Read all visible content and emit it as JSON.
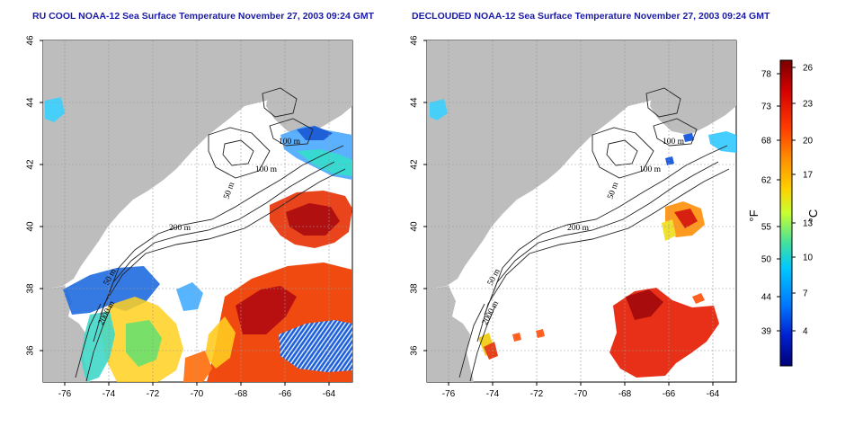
{
  "left_map": {
    "title": "RU COOL NOAA-12 Sea Surface Temperature November 27, 2003 09:24 GMT",
    "x_ticks": [
      "-76",
      "-74",
      "-72",
      "-70",
      "-68",
      "-66",
      "-64"
    ],
    "y_ticks": [
      "46",
      "44",
      "42",
      "40",
      "38",
      "36"
    ],
    "contour_labels": [
      "100 m",
      "100 m",
      "50 m",
      "200 m",
      "50 m",
      "2000 m"
    ]
  },
  "right_map": {
    "title": "DECLOUDED NOAA-12 Sea Surface Temperature November 27, 2003 09:24 GMT",
    "x_ticks": [
      "-76",
      "-74",
      "-72",
      "-70",
      "-68",
      "-66",
      "-64"
    ],
    "y_ticks": [
      "46",
      "44",
      "42",
      "40",
      "38",
      "36"
    ],
    "contour_labels": [
      "100 m",
      "100 m",
      "50 m",
      "200 m",
      "50 m",
      "2000 m"
    ]
  },
  "colorbar": {
    "fahrenheit_label": "°F",
    "celsius_label": "°C",
    "fahrenheit_ticks": [
      "78",
      "73",
      "68",
      "62",
      "55",
      "50",
      "44",
      "39"
    ],
    "celsius_ticks": [
      "26",
      "23",
      "20",
      "17",
      "13",
      "10",
      "7",
      "4"
    ],
    "colors": [
      "#7a0000",
      "#d40000",
      "#ff3a00",
      "#ff8c00",
      "#ffd000",
      "#c8ff30",
      "#40e0a0",
      "#00c8ff",
      "#0078ff",
      "#0020d0",
      "#00007a"
    ]
  },
  "colors": {
    "land": "#bdbdbd",
    "ocean_no_data": "#ffffff",
    "title": "#1a1aa8",
    "grid": "#9a9a9a"
  }
}
